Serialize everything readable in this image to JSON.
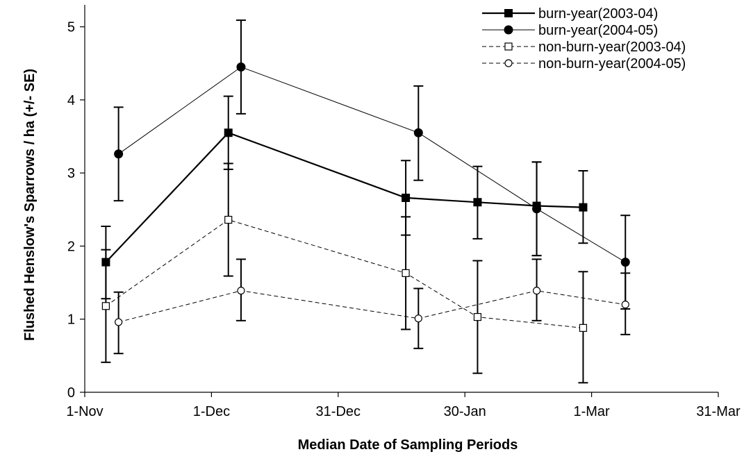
{
  "chart_data": {
    "type": "line",
    "xlabel": "Median Date of Sampling Periods",
    "ylabel": "Flushed Henslow's Sparrows / ha (+/- SE)",
    "x_axis": {
      "unit": "days since 1-Nov",
      "range": [
        0,
        150
      ],
      "ticks": [
        {
          "value": 0,
          "label": "1-Nov"
        },
        {
          "value": 30,
          "label": "1-Dec"
        },
        {
          "value": 60,
          "label": "31-Dec"
        },
        {
          "value": 90,
          "label": "30-Jan"
        },
        {
          "value": 120,
          "label": "1-Mar"
        },
        {
          "value": 150,
          "label": "31-Mar"
        }
      ]
    },
    "y_axis": {
      "range": [
        0,
        5.3
      ],
      "ticks": [
        {
          "value": 0,
          "label": "0"
        },
        {
          "value": 1,
          "label": "1"
        },
        {
          "value": 2,
          "label": "2"
        },
        {
          "value": 3,
          "label": "3"
        },
        {
          "value": 4,
          "label": "4"
        },
        {
          "value": 5,
          "label": "5"
        }
      ]
    },
    "grid": false,
    "legend_position": "top-right",
    "series": [
      {
        "name": "burn-year(2003-04)",
        "line": "solid-thick",
        "marker": "square-filled",
        "points": [
          {
            "x": 5,
            "y": 1.78,
            "lo": 1.28,
            "hi": 2.27
          },
          {
            "x": 34,
            "y": 3.55,
            "lo": 3.05,
            "hi": 4.05
          },
          {
            "x": 76,
            "y": 2.66,
            "lo": 2.15,
            "hi": 3.17
          },
          {
            "x": 93,
            "y": 2.6,
            "lo": 2.1,
            "hi": 3.09
          },
          {
            "x": 107,
            "y": 2.55,
            "lo": 1.87,
            "hi": 3.15
          },
          {
            "x": 118,
            "y": 2.53,
            "lo": 2.04,
            "hi": 3.03
          }
        ]
      },
      {
        "name": "burn-year(2004-05)",
        "line": "solid-thin",
        "marker": "circle-filled",
        "points": [
          {
            "x": 8,
            "y": 3.26,
            "lo": 2.62,
            "hi": 3.9
          },
          {
            "x": 37,
            "y": 4.45,
            "lo": 3.81,
            "hi": 5.09
          },
          {
            "x": 79,
            "y": 3.55,
            "lo": 2.9,
            "hi": 4.19
          },
          {
            "x": 107,
            "y": 2.51,
            "lo": 1.87,
            "hi": 3.15
          },
          {
            "x": 128,
            "y": 1.78,
            "lo": 1.14,
            "hi": 2.42
          }
        ]
      },
      {
        "name": "non-burn-year(2003-04)",
        "line": "dashed",
        "marker": "square-open",
        "points": [
          {
            "x": 5,
            "y": 1.18,
            "lo": 0.41,
            "hi": 1.95
          },
          {
            "x": 34,
            "y": 2.36,
            "lo": 1.59,
            "hi": 3.13
          },
          {
            "x": 76,
            "y": 1.63,
            "lo": 0.86,
            "hi": 2.4
          },
          {
            "x": 93,
            "y": 1.03,
            "lo": 0.26,
            "hi": 1.8
          },
          {
            "x": 118,
            "y": 0.88,
            "lo": 0.13,
            "hi": 1.65
          }
        ]
      },
      {
        "name": "non-burn-year(2004-05)",
        "line": "dashed",
        "marker": "circle-open",
        "points": [
          {
            "x": 8,
            "y": 0.96,
            "lo": 0.53,
            "hi": 1.37
          },
          {
            "x": 37,
            "y": 1.39,
            "lo": 0.98,
            "hi": 1.82
          },
          {
            "x": 79,
            "y": 1.01,
            "lo": 0.6,
            "hi": 1.42
          },
          {
            "x": 107,
            "y": 1.39,
            "lo": 0.98,
            "hi": 1.82
          },
          {
            "x": 128,
            "y": 1.2,
            "lo": 0.79,
            "hi": 1.63
          }
        ]
      }
    ]
  }
}
